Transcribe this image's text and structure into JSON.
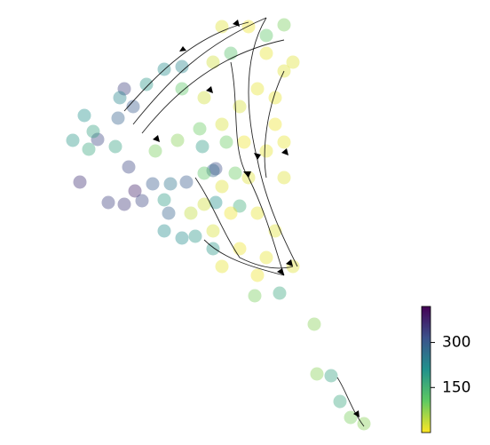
{
  "chart_data": {
    "type": "scatter",
    "xlim": [
      0,
      552
    ],
    "ylim": [
      501,
      0
    ],
    "clim": [
      0,
      420
    ],
    "cticks": [
      150,
      300
    ],
    "colormap": [
      "#fde725",
      "#5ec962",
      "#21918c",
      "#3b528b",
      "#440154"
    ],
    "x": [
      90,
      122,
      140,
      152,
      160,
      145,
      172,
      192,
      210,
      243,
      110,
      140,
      150,
      133,
      190,
      240,
      82,
      95,
      105,
      100,
      130,
      185,
      205,
      185,
      220,
      228,
      243,
      315,
      373,
      383,
      185,
      135,
      165,
      205,
      240,
      270,
      287,
      354,
      357,
      395,
      410,
      175,
      200,
      255,
      230,
      265,
      225,
      205,
      260,
      300,
      320,
      250,
      280,
      300,
      320,
      290,
      270,
      310,
      300,
      280,
      260,
      290,
      310,
      240,
      270,
      300,
      330,
      250,
      290,
      240,
      230,
      320,
      320,
      275,
      250,
      310,
      330,
      230,
      215,
      250
    ],
    "y": [
      205,
      228,
      230,
      215,
      226,
      188,
      207,
      207,
      205,
      190,
      157,
      100,
      120,
      133,
      240,
      192,
      158,
      130,
      148,
      168,
      165,
      260,
      268,
      225,
      266,
      165,
      228,
      330,
      423,
      452,
      78,
      110,
      95,
      75,
      280,
      232,
      333,
      365,
      421,
      470,
      477,
      170,
      158,
      160,
      195,
      195,
      145,
      100,
      60,
      40,
      28,
      30,
      30,
      60,
      80,
      100,
      120,
      140,
      170,
      200,
      240,
      240,
      260,
      260,
      280,
      290,
      300,
      300,
      310,
      70,
      110,
      200,
      160,
      160,
      140,
      110,
      70,
      230,
      240,
      210
    ],
    "color_values": [
      360,
      340,
      350,
      380,
      330,
      330,
      300,
      260,
      300,
      320,
      330,
      340,
      300,
      290,
      290,
      280,
      200,
      210,
      180,
      170,
      180,
      220,
      220,
      190,
      200,
      190,
      210,
      170,
      180,
      170,
      220,
      230,
      200,
      230,
      200,
      160,
      90,
      80,
      80,
      90,
      80,
      90,
      80,
      100,
      110,
      100,
      100,
      110,
      120,
      110,
      90,
      20,
      10,
      15,
      20,
      15,
      25,
      10,
      15,
      20,
      10,
      15,
      20,
      25,
      10,
      15,
      20,
      15,
      10,
      30,
      30,
      20,
      15,
      10,
      25,
      15,
      20,
      30,
      40,
      20
    ]
  }
}
